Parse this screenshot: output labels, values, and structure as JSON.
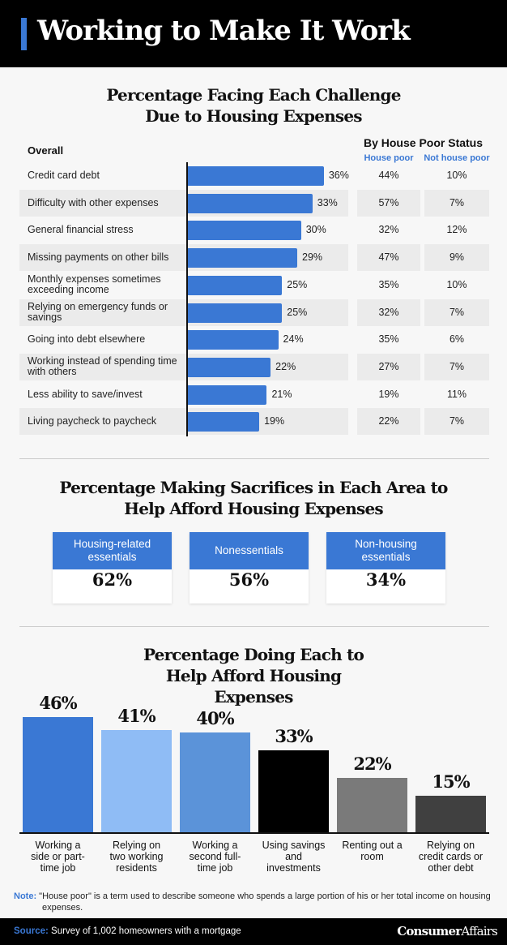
{
  "title": "Working to Make It Work",
  "colors": {
    "accent": "#3a78d4",
    "header_bg": "#000000"
  },
  "chart_data": [
    {
      "type": "bar",
      "orientation": "horizontal",
      "title": "Percentage Facing Each Challenge Due to Housing Expenses",
      "series_label": "Overall",
      "table_header": "By House Poor Status",
      "columns": [
        "House poor",
        "Not house poor"
      ],
      "categories": [
        "Credit card debt",
        "Difficulty with other expenses",
        "General financial stress",
        "Missing payments on other bills",
        "Monthly expenses sometimes exceeding income",
        "Relying on emergency funds or savings",
        "Going into debt elsewhere",
        "Working instead of spending time with others",
        "Less ability to save/invest",
        "Living paycheck to paycheck"
      ],
      "values": [
        36,
        33,
        30,
        29,
        25,
        25,
        24,
        22,
        21,
        19
      ],
      "house_poor": [
        44,
        57,
        32,
        47,
        35,
        32,
        35,
        27,
        19,
        22
      ],
      "not_house_poor": [
        10,
        7,
        12,
        9,
        10,
        7,
        6,
        7,
        11,
        7
      ],
      "unit": "%"
    },
    {
      "type": "table",
      "title": "Percentage Making Sacrifices in Each Area to Help Afford Housing Expenses",
      "categories": [
        "Housing-related essentials",
        "Nonessentials",
        "Non-housing essentials"
      ],
      "values": [
        62,
        56,
        34
      ],
      "unit": "%"
    },
    {
      "type": "bar",
      "orientation": "vertical",
      "title": "Percentage Doing Each to Help Afford Housing Expenses",
      "categories": [
        "Working a side or part-time job",
        "Relying on two working residents",
        "Working a second full-time job",
        "Using savings and investments",
        "Renting out a room",
        "Relying on credit cards or other debt"
      ],
      "values": [
        46,
        41,
        40,
        33,
        22,
        15
      ],
      "colors": [
        "#3a78d4",
        "#8fbcf5",
        "#5b93d9",
        "#000000",
        "#7a7a7a",
        "#404040"
      ],
      "unit": "%"
    }
  ],
  "note_label": "Note:",
  "note": "\"House poor\" is a term used to describe someone who spends a large portion of his or her total income on housing expenses.",
  "source_label": "Source:",
  "source": "Survey of 1,002 homeowners with a mortgage",
  "brand": {
    "bold": "Consumer",
    "light": "Affairs"
  }
}
